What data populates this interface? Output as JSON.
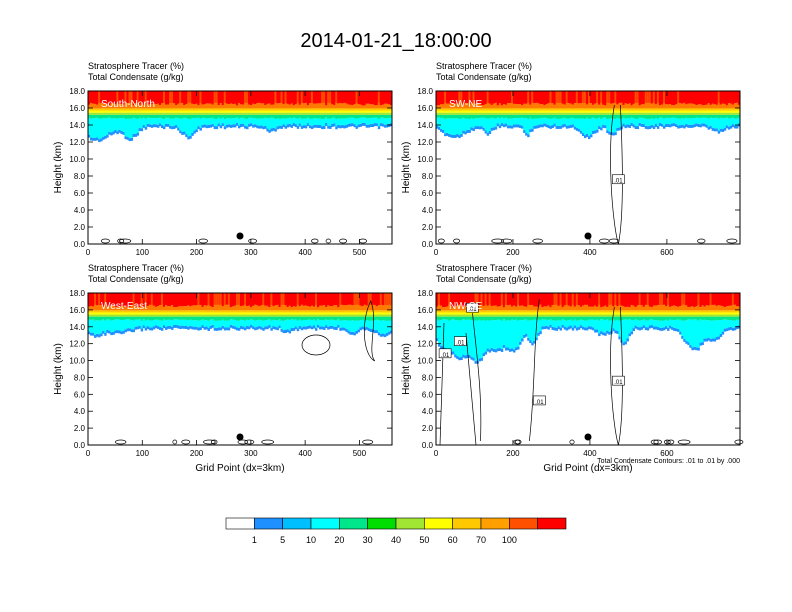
{
  "title": "2014-01-21_18:00:00",
  "chart_data": [
    {
      "type": "heatmap",
      "panel_label": "South-North",
      "title_lines": [
        "Stratosphere Tracer   (%)",
        "Total Condensate   (g/kg)"
      ],
      "ylabel": "Height (km)",
      "xlabel": "",
      "xlim": [
        0,
        560
      ],
      "ylim": [
        0,
        18
      ],
      "xticks": [
        0,
        100,
        200,
        300,
        400,
        500
      ],
      "yticks": [
        "0.0",
        "2.0",
        "4.0",
        "6.0",
        "8.0",
        "10.0",
        "12.0",
        "14.0",
        "16.0",
        "18.0"
      ],
      "marker_x": 280,
      "contour_labels": [],
      "footnote": ""
    },
    {
      "type": "heatmap",
      "panel_label": "SW-NE",
      "title_lines": [
        "Stratosphere Tracer   (%)",
        "Total Condensate   (g/kg)"
      ],
      "ylabel": "Height (km)",
      "xlabel": "",
      "xlim": [
        0,
        790
      ],
      "ylim": [
        0,
        18
      ],
      "xticks": [
        0,
        200,
        400,
        600
      ],
      "yticks": [
        "0.0",
        "2.0",
        "4.0",
        "6.0",
        "8.0",
        "10.0",
        "12.0",
        "14.0",
        "16.0",
        "18.0"
      ],
      "marker_x": 395,
      "contour_labels": [
        ".01"
      ],
      "footnote": ""
    },
    {
      "type": "heatmap",
      "panel_label": "West-East",
      "title_lines": [
        "Stratosphere Tracer   (%)",
        "Total Condensate   (g/kg)"
      ],
      "ylabel": "Height (km)",
      "xlabel": "Grid Point (dx=3km)",
      "xlim": [
        0,
        560
      ],
      "ylim": [
        0,
        18
      ],
      "xticks": [
        0,
        100,
        200,
        300,
        400,
        500
      ],
      "yticks": [
        "0.0",
        "2.0",
        "4.0",
        "6.0",
        "8.0",
        "10.0",
        "12.0",
        "14.0",
        "16.0",
        "18.0"
      ],
      "marker_x": 280,
      "contour_labels": [],
      "footnote": ""
    },
    {
      "type": "heatmap",
      "panel_label": "NW-SE",
      "title_lines": [
        "Stratosphere Tracer   (%)",
        "Total Condensate   (g/kg)"
      ],
      "ylabel": "Height (km)",
      "xlabel": "Grid Point (dx=3km)",
      "xlim": [
        0,
        790
      ],
      "ylim": [
        0,
        18
      ],
      "xticks": [
        0,
        200,
        400,
        600
      ],
      "yticks": [
        "0.0",
        "2.0",
        "4.0",
        "6.0",
        "8.0",
        "10.0",
        "12.0",
        "14.0",
        "16.0",
        "18.0"
      ],
      "marker_x": 395,
      "contour_labels": [
        ".01",
        ".01",
        ".01",
        ".01",
        ".01"
      ],
      "footnote": "Total Condensate Contours: .01 to .01 by .000"
    }
  ],
  "colorbar": {
    "levels": [
      "1",
      "5",
      "10",
      "20",
      "30",
      "40",
      "50",
      "60",
      "70",
      "100"
    ],
    "colors": [
      "#ffffff",
      "#1e90ff",
      "#00bfff",
      "#00ffff",
      "#00e68a",
      "#00dd00",
      "#a0e632",
      "#ffff00",
      "#ffc800",
      "#ffa000",
      "#ff5000",
      "#ff0000"
    ]
  }
}
